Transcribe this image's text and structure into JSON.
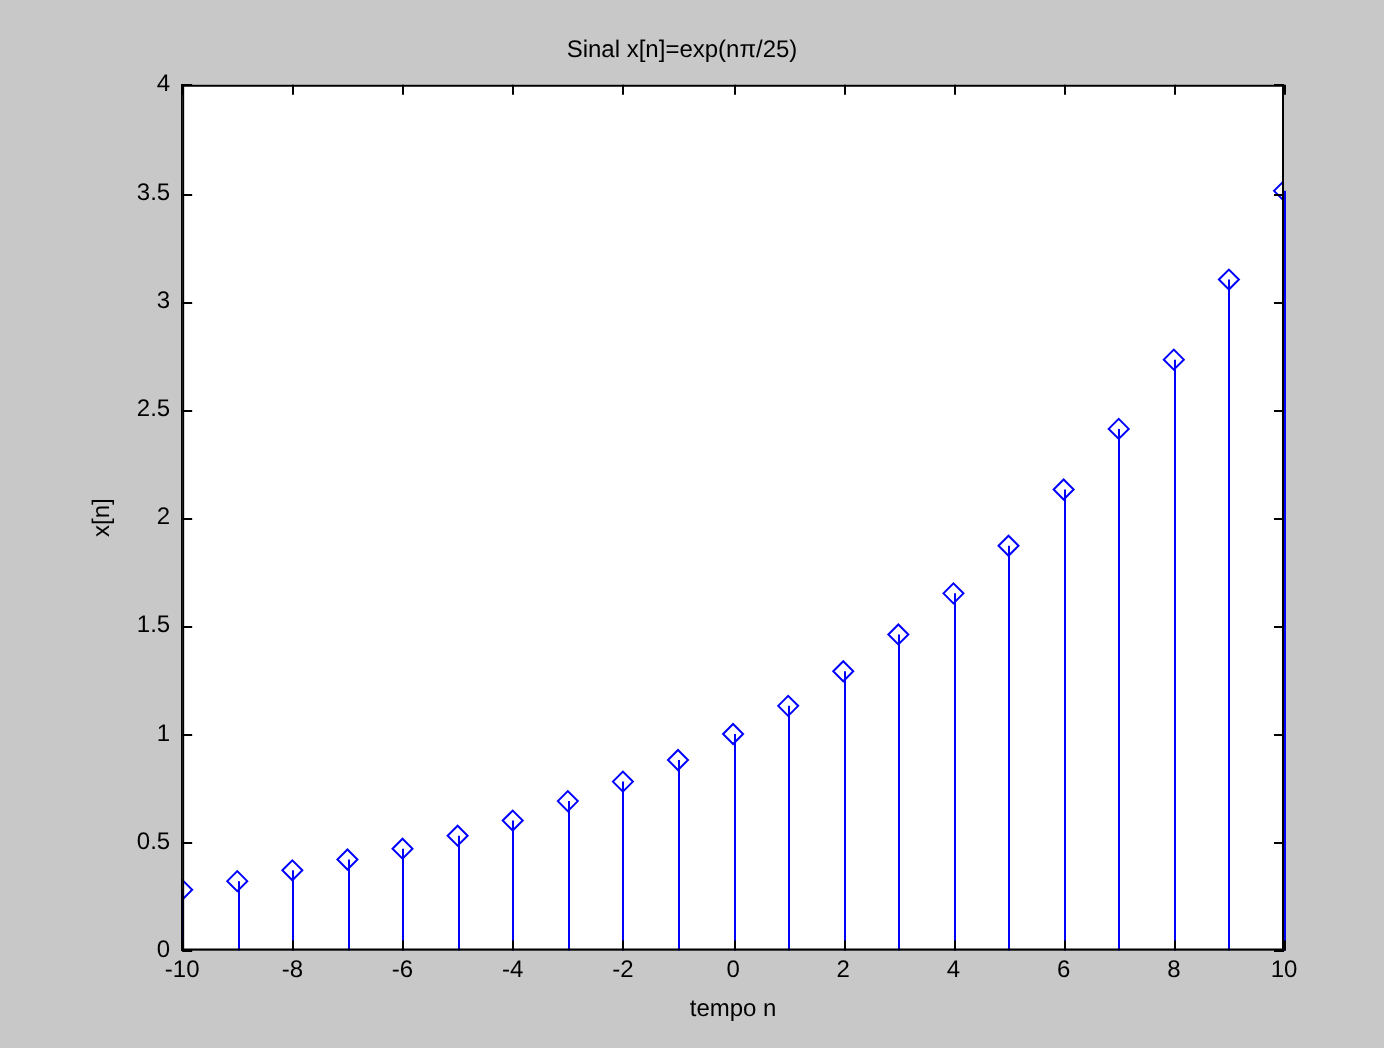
{
  "chart_data": {
    "type": "lollipop",
    "title": "Sinal x[n]=exp(nπ/25)",
    "xlabel": "tempo n",
    "ylabel": "x[n]",
    "x": [
      -10,
      -9,
      -8,
      -7,
      -6,
      -5,
      -4,
      -3,
      -2,
      -1,
      0,
      1,
      2,
      3,
      4,
      5,
      6,
      7,
      8,
      9,
      10
    ],
    "values": [
      0.28,
      0.32,
      0.37,
      0.42,
      0.47,
      0.53,
      0.6,
      0.69,
      0.78,
      0.88,
      1.0,
      1.13,
      1.29,
      1.46,
      1.65,
      1.87,
      2.13,
      2.41,
      2.73,
      3.1,
      3.51
    ],
    "color": "#0000ff",
    "marker": "diamond",
    "xlim": [
      -10,
      10
    ],
    "xticks": [
      -10,
      -8,
      -6,
      -4,
      -2,
      0,
      2,
      4,
      6,
      8,
      10
    ],
    "ylim": [
      0,
      4
    ],
    "yticks": [
      0,
      0.5,
      1,
      1.5,
      2,
      2.5,
      3,
      3.5,
      4
    ]
  }
}
